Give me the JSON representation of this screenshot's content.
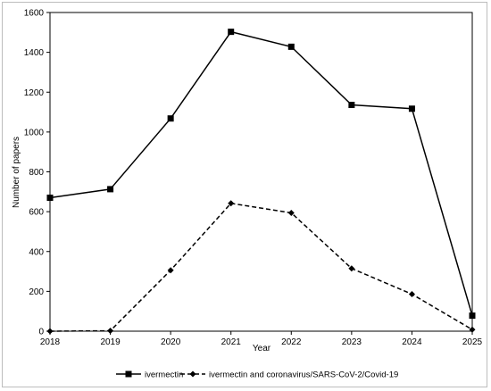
{
  "chart_data": {
    "type": "line",
    "title": "",
    "xlabel": "Year",
    "ylabel": "Number of papers",
    "x": [
      2018,
      2019,
      2020,
      2021,
      2022,
      2023,
      2024,
      2025
    ],
    "x_tick_labels": [
      "2018",
      "2019",
      "2020",
      "2021",
      "2022",
      "2023",
      "2024",
      "2025"
    ],
    "ylim": [
      0,
      1600
    ],
    "y_ticks": [
      0,
      200,
      400,
      600,
      800,
      1000,
      1200,
      1400,
      1600
    ],
    "y_tick_labels": [
      "0",
      "200",
      "400",
      "600",
      "800",
      "1000",
      "1200",
      "1400",
      "1600"
    ],
    "grid": false,
    "legend_position": "bottom",
    "series": [
      {
        "name": "ivermectin",
        "values": [
          670,
          713,
          1068,
          1503,
          1428,
          1136,
          1117,
          78
        ],
        "line_style": "solid",
        "marker": "square",
        "color": "#000000"
      },
      {
        "name": "ivermectin and coronavirus/SARS-CoV-2/Covid-19",
        "values": [
          0,
          2,
          306,
          642,
          594,
          315,
          186,
          8
        ],
        "line_style": "dashed",
        "marker": "diamond",
        "color": "#000000"
      }
    ]
  }
}
